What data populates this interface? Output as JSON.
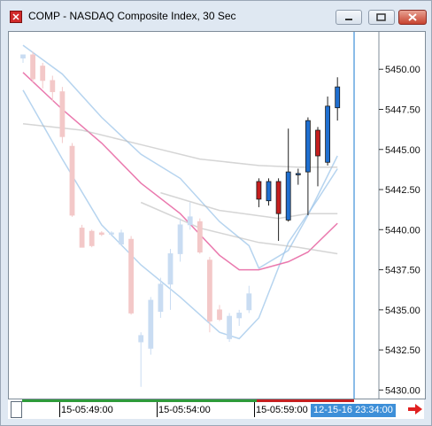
{
  "window": {
    "title": "COMP - NASDAQ Composite Index, 30 Sec"
  },
  "icons": {
    "app": "app-logo-icon",
    "minimize": "minimize-icon",
    "maximize": "maximize-icon",
    "close": "close-icon",
    "scroll_right": "red-right-arrow-icon"
  },
  "colors": {
    "up_candle": "#1f6fd0",
    "down_candle": "#c41e1e",
    "faded_up": "#c9dcf2",
    "faded_down": "#f3c8c8",
    "cursor_line": "#3d8fd8",
    "band_line": "#9ec5ea",
    "ma_line": "#e86aa5",
    "gray_line": "#b9b9b9"
  },
  "timeline": {
    "labels": [
      "15-05:49:00",
      "15-05:54:00",
      "15-05:59:00"
    ],
    "cursor_time": "12-15-16 23:34:00"
  },
  "chart_data": {
    "type": "candlestick",
    "title": "COMP - NASDAQ Composite Index, 30 Sec",
    "ylim": [
      5429.8,
      5452.0
    ],
    "y_ticks": [
      "5450.00",
      "5447.50",
      "5445.00",
      "5442.50",
      "5440.00",
      "5437.50",
      "5435.00",
      "5432.50",
      "5430.00"
    ],
    "x_tick_labels": [
      "15-05:49:00",
      "15-05:54:00",
      "15-05:59:00"
    ],
    "candles": [
      {
        "i": 0,
        "o": 5450.7,
        "h": 5450.9,
        "l": 5450.4,
        "c": 5450.9,
        "faded": true
      },
      {
        "i": 1,
        "o": 5450.9,
        "h": 5451.1,
        "l": 5449.2,
        "c": 5449.4,
        "faded": true
      },
      {
        "i": 2,
        "o": 5450.2,
        "h": 5450.4,
        "l": 5448.8,
        "c": 5449.3,
        "faded": true
      },
      {
        "i": 3,
        "o": 5449.3,
        "h": 5449.6,
        "l": 5448.0,
        "c": 5448.6,
        "faded": true
      },
      {
        "i": 4,
        "o": 5448.6,
        "h": 5448.9,
        "l": 5445.4,
        "c": 5445.8,
        "faded": true
      },
      {
        "i": 5,
        "o": 5445.2,
        "h": 5445.4,
        "l": 5440.8,
        "c": 5440.9,
        "faded": true
      },
      {
        "i": 6,
        "o": 5440.1,
        "h": 5440.3,
        "l": 5438.9,
        "c": 5438.9,
        "faded": true
      },
      {
        "i": 7,
        "o": 5439.9,
        "h": 5440.0,
        "l": 5438.9,
        "c": 5439.0,
        "faded": true
      },
      {
        "i": 8,
        "o": 5439.8,
        "h": 5439.9,
        "l": 5439.6,
        "c": 5439.7,
        "faded": true
      },
      {
        "i": 9,
        "o": 5439.8,
        "h": 5439.9,
        "l": 5439.6,
        "c": 5439.8,
        "faded": true
      },
      {
        "i": 10,
        "o": 5439.1,
        "h": 5440.0,
        "l": 5439.0,
        "c": 5439.8,
        "faded": true
      },
      {
        "i": 11,
        "o": 5439.4,
        "h": 5439.6,
        "l": 5434.7,
        "c": 5434.8,
        "faded": true
      },
      {
        "i": 12,
        "o": 5433.0,
        "h": 5433.6,
        "l": 5430.2,
        "c": 5433.4,
        "faded": true
      },
      {
        "i": 13,
        "o": 5432.6,
        "h": 5435.8,
        "l": 5432.2,
        "c": 5435.6,
        "faded": true
      },
      {
        "i": 14,
        "o": 5434.9,
        "h": 5437.0,
        "l": 5434.5,
        "c": 5436.6,
        "faded": true
      },
      {
        "i": 15,
        "o": 5436.6,
        "h": 5438.8,
        "l": 5435.0,
        "c": 5438.5,
        "faded": true
      },
      {
        "i": 16,
        "o": 5438.5,
        "h": 5440.7,
        "l": 5438.0,
        "c": 5440.3,
        "faded": true
      },
      {
        "i": 17,
        "o": 5440.3,
        "h": 5441.7,
        "l": 5440.0,
        "c": 5440.8,
        "faded": true
      },
      {
        "i": 18,
        "o": 5440.5,
        "h": 5440.7,
        "l": 5438.5,
        "c": 5438.6,
        "faded": true
      },
      {
        "i": 19,
        "o": 5438.1,
        "h": 5438.3,
        "l": 5433.6,
        "c": 5434.3,
        "faded": true
      },
      {
        "i": 20,
        "o": 5435.0,
        "h": 5435.3,
        "l": 5434.3,
        "c": 5434.4,
        "faded": true
      },
      {
        "i": 21,
        "o": 5433.2,
        "h": 5434.8,
        "l": 5433.0,
        "c": 5434.6,
        "faded": true
      },
      {
        "i": 22,
        "o": 5434.5,
        "h": 5435.0,
        "l": 5434.0,
        "c": 5434.8,
        "faded": true
      },
      {
        "i": 23,
        "o": 5435.0,
        "h": 5436.5,
        "l": 5434.8,
        "c": 5436.0,
        "faded": true
      },
      {
        "i": 24,
        "o": 5443.0,
        "h": 5443.2,
        "l": 5441.4,
        "c": 5441.9,
        "faded": false
      },
      {
        "i": 25,
        "o": 5441.8,
        "h": 5443.2,
        "l": 5441.5,
        "c": 5443.0,
        "faded": false
      },
      {
        "i": 26,
        "o": 5443.0,
        "h": 5443.2,
        "l": 5439.3,
        "c": 5441.0,
        "faded": false
      },
      {
        "i": 27,
        "o": 5440.6,
        "h": 5446.3,
        "l": 5440.5,
        "c": 5443.6,
        "faded": false
      },
      {
        "i": 28,
        "o": 5443.5,
        "h": 5443.8,
        "l": 5442.8,
        "c": 5443.5,
        "faded": false
      },
      {
        "i": 29,
        "o": 5443.6,
        "h": 5447.0,
        "l": 5440.9,
        "c": 5446.8,
        "faded": false
      },
      {
        "i": 30,
        "o": 5446.2,
        "h": 5446.4,
        "l": 5442.7,
        "c": 5444.6,
        "faded": false
      },
      {
        "i": 31,
        "o": 5444.2,
        "h": 5448.3,
        "l": 5444.0,
        "c": 5447.7,
        "faded": false
      },
      {
        "i": 32,
        "o": 5447.6,
        "h": 5449.5,
        "l": 5446.8,
        "c": 5448.9,
        "faded": false
      }
    ],
    "overlays": [
      {
        "name": "band-upper",
        "color": "#9ec5ea",
        "points": [
          [
            0,
            5451.5
          ],
          [
            4,
            5449.7
          ],
          [
            8,
            5447.0
          ],
          [
            12,
            5444.7
          ],
          [
            16,
            5443.2
          ],
          [
            20,
            5440.5
          ],
          [
            23,
            5439.0
          ],
          [
            24,
            5437.6
          ],
          [
            27,
            5438.7
          ],
          [
            29,
            5440.9
          ],
          [
            32,
            5444.6
          ]
        ]
      },
      {
        "name": "band-lower",
        "color": "#9ec5ea",
        "points": [
          [
            0,
            5448.7
          ],
          [
            4,
            5444.4
          ],
          [
            8,
            5440.3
          ],
          [
            12,
            5437.8
          ],
          [
            16,
            5435.8
          ],
          [
            20,
            5433.6
          ],
          [
            22,
            5433.2
          ],
          [
            24,
            5434.5
          ],
          [
            27,
            5439.2
          ],
          [
            30,
            5441.9
          ],
          [
            32,
            5443.8
          ]
        ]
      },
      {
        "name": "moving-average",
        "color": "#e86aa5",
        "points": [
          [
            0,
            5449.8
          ],
          [
            4,
            5447.5
          ],
          [
            8,
            5445.4
          ],
          [
            12,
            5442.9
          ],
          [
            16,
            5441.0
          ],
          [
            20,
            5438.4
          ],
          [
            22,
            5437.5
          ],
          [
            24,
            5437.5
          ],
          [
            27,
            5438.0
          ],
          [
            29,
            5438.6
          ],
          [
            32,
            5440.4
          ]
        ]
      },
      {
        "name": "gray-level-upper",
        "color": "#b9b9b9",
        "points": [
          [
            0,
            5446.6
          ],
          [
            6,
            5446.2
          ],
          [
            12,
            5445.3
          ],
          [
            18,
            5444.4
          ],
          [
            24,
            5444.0
          ],
          [
            28,
            5443.9
          ],
          [
            32,
            5443.9
          ]
        ]
      },
      {
        "name": "gray-level-mid",
        "color": "#b9b9b9",
        "points": [
          [
            14,
            5442.3
          ],
          [
            20,
            5441.2
          ],
          [
            26,
            5440.7
          ],
          [
            29,
            5441.0
          ],
          [
            32,
            5441.0
          ]
        ]
      },
      {
        "name": "gray-level-lower",
        "color": "#b9b9b9",
        "points": [
          [
            12,
            5441.7
          ],
          [
            18,
            5440.1
          ],
          [
            24,
            5439.2
          ],
          [
            28,
            5438.9
          ],
          [
            32,
            5438.5
          ]
        ]
      }
    ],
    "grid": false,
    "legend": "none"
  }
}
